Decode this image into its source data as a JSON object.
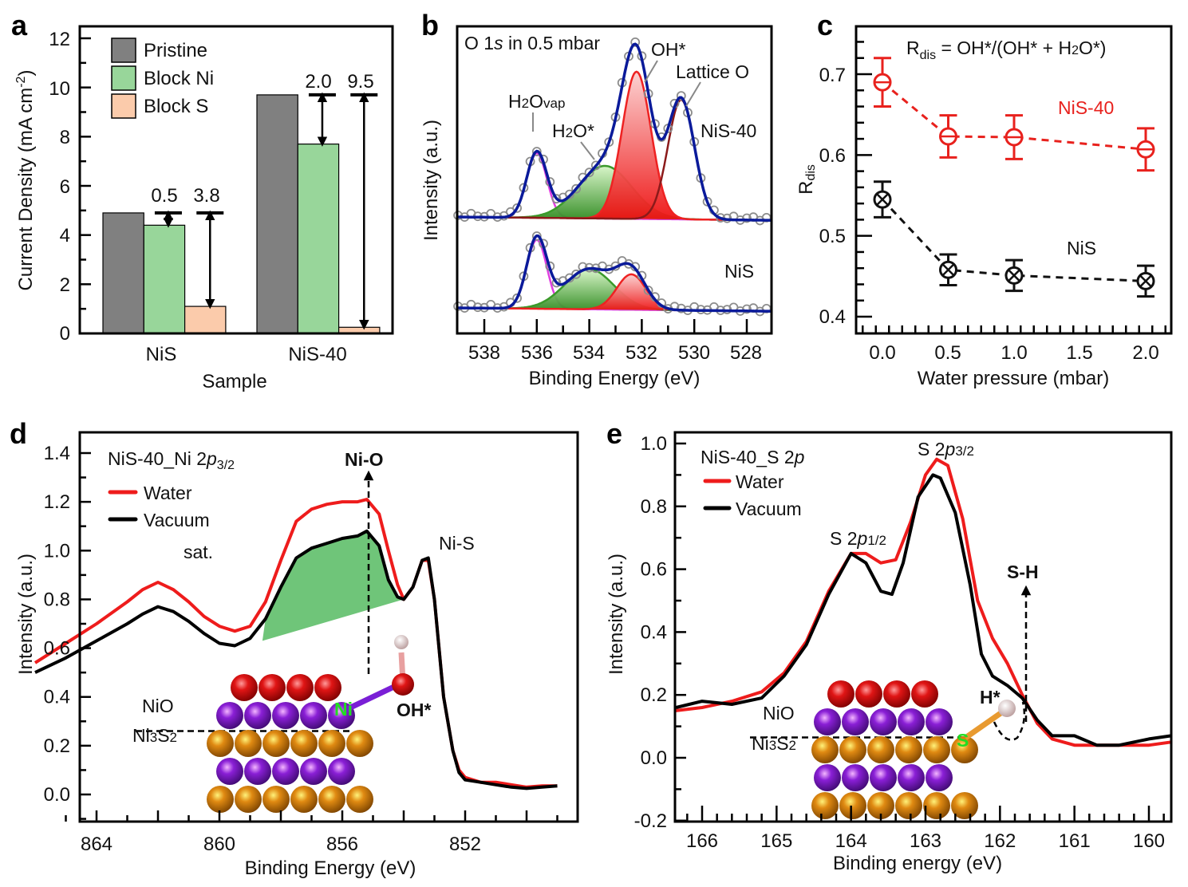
{
  "figure": {
    "panels": [
      "a",
      "b",
      "c",
      "d",
      "e"
    ]
  },
  "chart_data": [
    {
      "id": "a",
      "type": "bar",
      "panel_label": "a",
      "xlabel": "Sample",
      "ylabel": "Current Density (mA cm⁻²)",
      "ylim": [
        0,
        12.5
      ],
      "yticks": [
        0,
        2,
        4,
        6,
        8,
        10,
        12
      ],
      "categories": [
        "NiS",
        "NiS-40"
      ],
      "series": [
        {
          "name": "Pristine",
          "color": "#808080",
          "values": [
            4.9,
            9.7
          ]
        },
        {
          "name": "Block Ni",
          "color": "#98d69a",
          "values": [
            4.4,
            7.7
          ]
        },
        {
          "name": "Block S",
          "color": "#fbcbab",
          "values": [
            1.1,
            0.25
          ]
        }
      ],
      "legend": "top-left",
      "annotations": [
        {
          "category": "NiS",
          "series": "Block Ni",
          "text": "0.5"
        },
        {
          "category": "NiS",
          "series": "Block S",
          "text": "3.8"
        },
        {
          "category": "NiS-40",
          "series": "Block Ni",
          "text": "2.0"
        },
        {
          "category": "NiS-40",
          "series": "Block S",
          "text": "9.5"
        }
      ]
    },
    {
      "id": "b",
      "type": "line",
      "panel_label": "b",
      "title": "O 1s in 0.5 mbar",
      "xlabel": "Binding Energy (eV)",
      "ylabel": "Intensity (a.u.)",
      "xlim": [
        539,
        527.1
      ],
      "xticks": [
        538,
        536,
        534,
        532,
        530,
        528
      ],
      "components": {
        "NiS-40": {
          "label": "NiS-40",
          "peaks": [
            {
              "name": "H2Ovap",
              "center": 536.0,
              "height": 0.54,
              "fwhm": 0.9,
              "color": "#e040e0"
            },
            {
              "name": "H2O*",
              "center": 533.4,
              "height": 0.44,
              "fwhm": 2.4,
              "color": "#3a9a2a"
            },
            {
              "name": "OH*",
              "center": 532.2,
              "height": 1.23,
              "fwhm": 1.3,
              "color": "#ee2222"
            },
            {
              "name": "Lattice O",
              "center": 530.5,
              "height": 1.0,
              "fwhm": 1.2,
              "color": "#8b1a1a"
            }
          ]
        },
        "NiS": {
          "label": "NiS",
          "peaks": [
            {
              "name": "H2Ovap",
              "center": 536.0,
              "height": 0.72,
              "fwhm": 0.9,
              "color": "#e040e0"
            },
            {
              "name": "H2O*",
              "center": 534.0,
              "height": 0.42,
              "fwhm": 2.2,
              "color": "#3a9a2a"
            },
            {
              "name": "OH*",
              "center": 532.4,
              "height": 0.37,
              "fwhm": 1.3,
              "color": "#ee2222"
            }
          ]
        }
      },
      "peak_labels": [
        "H₂Ovap",
        "H₂O*",
        "OH*",
        "Lattice O"
      ]
    },
    {
      "id": "c",
      "type": "scatter",
      "panel_label": "c",
      "title": "R_dis = OH*/(OH* + H2O*)",
      "xlabel": "Water pressure (mbar)",
      "ylabel": "Rdis",
      "xlim": [
        -0.2,
        2.2
      ],
      "ylim": [
        0.38,
        0.75
      ],
      "xticks": [
        0.0,
        0.5,
        1.0,
        1.5,
        2.0
      ],
      "yticks": [
        0.4,
        0.5,
        0.6,
        0.7
      ],
      "x": [
        0.0,
        0.5,
        1.0,
        2.0
      ],
      "series": [
        {
          "name": "NiS-40",
          "color": "#e8211d",
          "marker": "circle-bar",
          "values": [
            0.69,
            0.623,
            0.622,
            0.607
          ],
          "errors": [
            0.03,
            0.026,
            0.027,
            0.026
          ]
        },
        {
          "name": "NiS",
          "color": "#111111",
          "marker": "circle-x",
          "values": [
            0.545,
            0.458,
            0.451,
            0.444
          ],
          "errors": [
            0.022,
            0.019,
            0.019,
            0.019
          ]
        }
      ]
    },
    {
      "id": "d",
      "type": "line",
      "panel_label": "d",
      "title": "NiS-40_Ni 2p3/2",
      "xlabel": "Binding Energy (eV)",
      "ylabel": "Intensity (a.u.)",
      "xlim": [
        866,
        849
      ],
      "ylim": [
        -0.1,
        1.5
      ],
      "xticks": [
        864,
        860,
        856,
        852
      ],
      "yticks": [
        0.0,
        0.2,
        0.4,
        0.6,
        0.8,
        1.0,
        1.2,
        1.4
      ],
      "series": [
        {
          "name": "Water",
          "color": "#ee1c1c",
          "x": [
            866,
            865,
            864,
            863,
            862.5,
            862,
            861.5,
            861,
            860.5,
            860,
            859.5,
            859,
            858.5,
            858,
            857.5,
            857,
            856.5,
            856,
            855.5,
            855.2,
            854.8,
            854.5,
            854.2,
            854,
            853.7,
            853.4,
            853.2,
            853,
            852.7,
            852.4,
            852.2,
            852,
            851.5,
            851,
            850.5,
            850,
            849.5,
            849
          ],
          "values": [
            0.54,
            0.62,
            0.7,
            0.79,
            0.84,
            0.87,
            0.84,
            0.79,
            0.73,
            0.69,
            0.67,
            0.69,
            0.79,
            0.96,
            1.12,
            1.17,
            1.19,
            1.2,
            1.2,
            1.21,
            1.15,
            1.0,
            0.86,
            0.8,
            0.85,
            0.96,
            0.96,
            0.8,
            0.4,
            0.18,
            0.1,
            0.07,
            0.05,
            0.05,
            0.04,
            0.03,
            0.035,
            0.035
          ]
        },
        {
          "name": "Vacuum",
          "color": "#000000",
          "x": [
            866,
            865,
            864,
            863,
            862.5,
            862,
            861.5,
            861,
            860.5,
            860,
            859.5,
            859,
            858.5,
            858,
            857.5,
            857,
            856.5,
            856,
            855.5,
            855.2,
            854.8,
            854.5,
            854.2,
            854,
            853.7,
            853.4,
            853.2,
            853,
            852.7,
            852.4,
            852.2,
            852,
            851.5,
            851,
            850.5,
            850,
            849.5,
            849
          ],
          "values": [
            0.5,
            0.56,
            0.63,
            0.7,
            0.74,
            0.77,
            0.75,
            0.71,
            0.66,
            0.62,
            0.61,
            0.64,
            0.72,
            0.85,
            0.97,
            1.01,
            1.03,
            1.05,
            1.06,
            1.08,
            1.02,
            0.88,
            0.81,
            0.8,
            0.85,
            0.96,
            0.97,
            0.8,
            0.4,
            0.18,
            0.09,
            0.06,
            0.05,
            0.04,
            0.03,
            0.025,
            0.03,
            0.035
          ]
        }
      ],
      "legend": "top-left",
      "annotations": [
        "sat.",
        "Ni-O",
        "Ni-S",
        "NiO",
        "Ni₃S₂",
        "OH*",
        "Ni"
      ]
    },
    {
      "id": "e",
      "type": "line",
      "panel_label": "e",
      "title": "NiS-40_S 2p",
      "xlabel": "Binding energy (eV)",
      "ylabel": "Intensity (a.u.)",
      "xlim": [
        166.35,
        159.7
      ],
      "ylim": [
        -0.2,
        1.05
      ],
      "xticks": [
        166,
        165,
        164,
        163,
        162,
        161,
        160
      ],
      "yticks": [
        -0.2,
        0.0,
        0.2,
        0.4,
        0.6,
        0.8,
        1.0
      ],
      "series": [
        {
          "name": "Water",
          "color": "#ee1c1c",
          "x": [
            166.35,
            166,
            165.6,
            165.2,
            164.9,
            164.6,
            164.3,
            164.0,
            163.8,
            163.6,
            163.4,
            163.2,
            163.0,
            162.85,
            162.7,
            162.5,
            162.3,
            162.1,
            161.9,
            161.7,
            161.5,
            161.3,
            161.0,
            160.7,
            160.4,
            160.0,
            159.7
          ],
          "values": [
            0.15,
            0.16,
            0.18,
            0.21,
            0.27,
            0.37,
            0.53,
            0.65,
            0.65,
            0.62,
            0.63,
            0.75,
            0.9,
            0.95,
            0.93,
            0.76,
            0.5,
            0.38,
            0.3,
            0.2,
            0.11,
            0.06,
            0.04,
            0.04,
            0.04,
            0.04,
            0.05
          ]
        },
        {
          "name": "Vacuum",
          "color": "#000000",
          "x": [
            166.35,
            166,
            165.6,
            165.2,
            164.9,
            164.6,
            164.3,
            164.0,
            163.8,
            163.6,
            163.45,
            163.3,
            163.1,
            162.9,
            162.8,
            162.6,
            162.4,
            162.25,
            162.1,
            161.9,
            161.7,
            161.5,
            161.3,
            161.0,
            160.7,
            160.4,
            160.0,
            159.7
          ],
          "values": [
            0.16,
            0.18,
            0.17,
            0.19,
            0.26,
            0.36,
            0.52,
            0.65,
            0.62,
            0.53,
            0.52,
            0.62,
            0.83,
            0.9,
            0.89,
            0.78,
            0.55,
            0.33,
            0.26,
            0.23,
            0.19,
            0.12,
            0.07,
            0.07,
            0.04,
            0.04,
            0.06,
            0.07
          ]
        }
      ],
      "legend": "top-left",
      "annotations": [
        "S 2p1/2",
        "S 2p3/2",
        "S-H",
        "NiO",
        "Ni₃S₂",
        "H*",
        "S"
      ]
    }
  ],
  "labels": {
    "a": {
      "letter": "a",
      "ylabel": "Current Density (mA cm",
      "ylabel_sup": "-2",
      "ylabel_end": ")",
      "xlabel": "Sample",
      "legend": [
        "Pristine",
        "Block Ni",
        "Block S"
      ],
      "cats": [
        "NiS",
        "NiS-40"
      ],
      "diffs": [
        "0.5",
        "3.8",
        "2.0",
        "9.5"
      ],
      "yticks": [
        "0",
        "2",
        "4",
        "6",
        "8",
        "10",
        "12"
      ]
    },
    "b": {
      "letter": "b",
      "title_pre": "O 1",
      "title_s": "s",
      "title_post": " in 0.5 mbar",
      "ylabel": "Intensity (a.u.)",
      "xlabel": "Binding Energy (eV)",
      "h2ovap_h": "H",
      "h2ovap_2": "2",
      "h2ovap_o": "O",
      "h2ovap_sub": "vap",
      "h2o_h": "H",
      "h2o_2": "2",
      "h2o_o": "O*",
      "oh": "OH*",
      "lattice": "Lattice O",
      "nis40": "NiS-40",
      "nis": "NiS",
      "xticks": [
        "538",
        "536",
        "534",
        "532",
        "530",
        "528"
      ]
    },
    "c": {
      "letter": "c",
      "eq_r": "R",
      "eq_sub": "dis",
      "eq_mid": " = OH*/(OH* + H",
      "eq_2": "2",
      "eq_end": "O*)",
      "ylabel_r": "R",
      "ylabel_sub": "dis",
      "xlabel": "Water pressure (mbar)",
      "nis40": "NiS-40",
      "nis": "NiS",
      "xticks": [
        "0.0",
        "0.5",
        "1.0",
        "1.5",
        "2.0"
      ],
      "yticks": [
        "0.4",
        "0.5",
        "0.6",
        "0.7"
      ]
    },
    "d": {
      "letter": "d",
      "title_pre": "NiS-40_Ni 2",
      "title_p": "p",
      "title_sub": "3/2",
      "legend": [
        "Water",
        "Vacuum"
      ],
      "ylabel": "Intensity (a.u.)",
      "xlabel": "Binding Energy (eV)",
      "sat": "sat.",
      "nio_bond": "Ni-O",
      "nis_bond": "Ni-S",
      "nio": "NiO",
      "ni3s2_a": "Ni",
      "ni3s2_3": "3",
      "ni3s2_b": "S",
      "ni3s2_2": "2",
      "oh": "OH*",
      "ni_atom": "Ni",
      "xticks": [
        "864",
        "860",
        "856",
        "852"
      ],
      "yticks": [
        "0.0",
        "0.2",
        "0.4",
        "0.6",
        "0.8",
        "1.0",
        "1.2",
        "1.4"
      ]
    },
    "e": {
      "letter": "e",
      "title_pre": "NiS-40_S 2",
      "title_p": "p",
      "legend": [
        "Water",
        "Vacuum"
      ],
      "ylabel": "Intensity (a.u.)",
      "xlabel": "Binding energy (eV)",
      "p12_pre": "S 2",
      "p12_p": "p",
      "p12_sub": "1/2",
      "p32_pre": "S 2",
      "p32_p": "p",
      "p32_sub": "3/2",
      "sh": "S-H",
      "nio": "NiO",
      "ni3s2_a": "Ni",
      "ni3s2_3": "3",
      "ni3s2_b": "S",
      "ni3s2_2": "2",
      "h": "H*",
      "s_atom": "S",
      "xticks": [
        "166",
        "165",
        "164",
        "163",
        "162",
        "161",
        "160"
      ],
      "yticks": [
        "-0.2",
        "0.0",
        "0.2",
        "0.4",
        "0.6",
        "0.8",
        "1.0"
      ]
    }
  }
}
